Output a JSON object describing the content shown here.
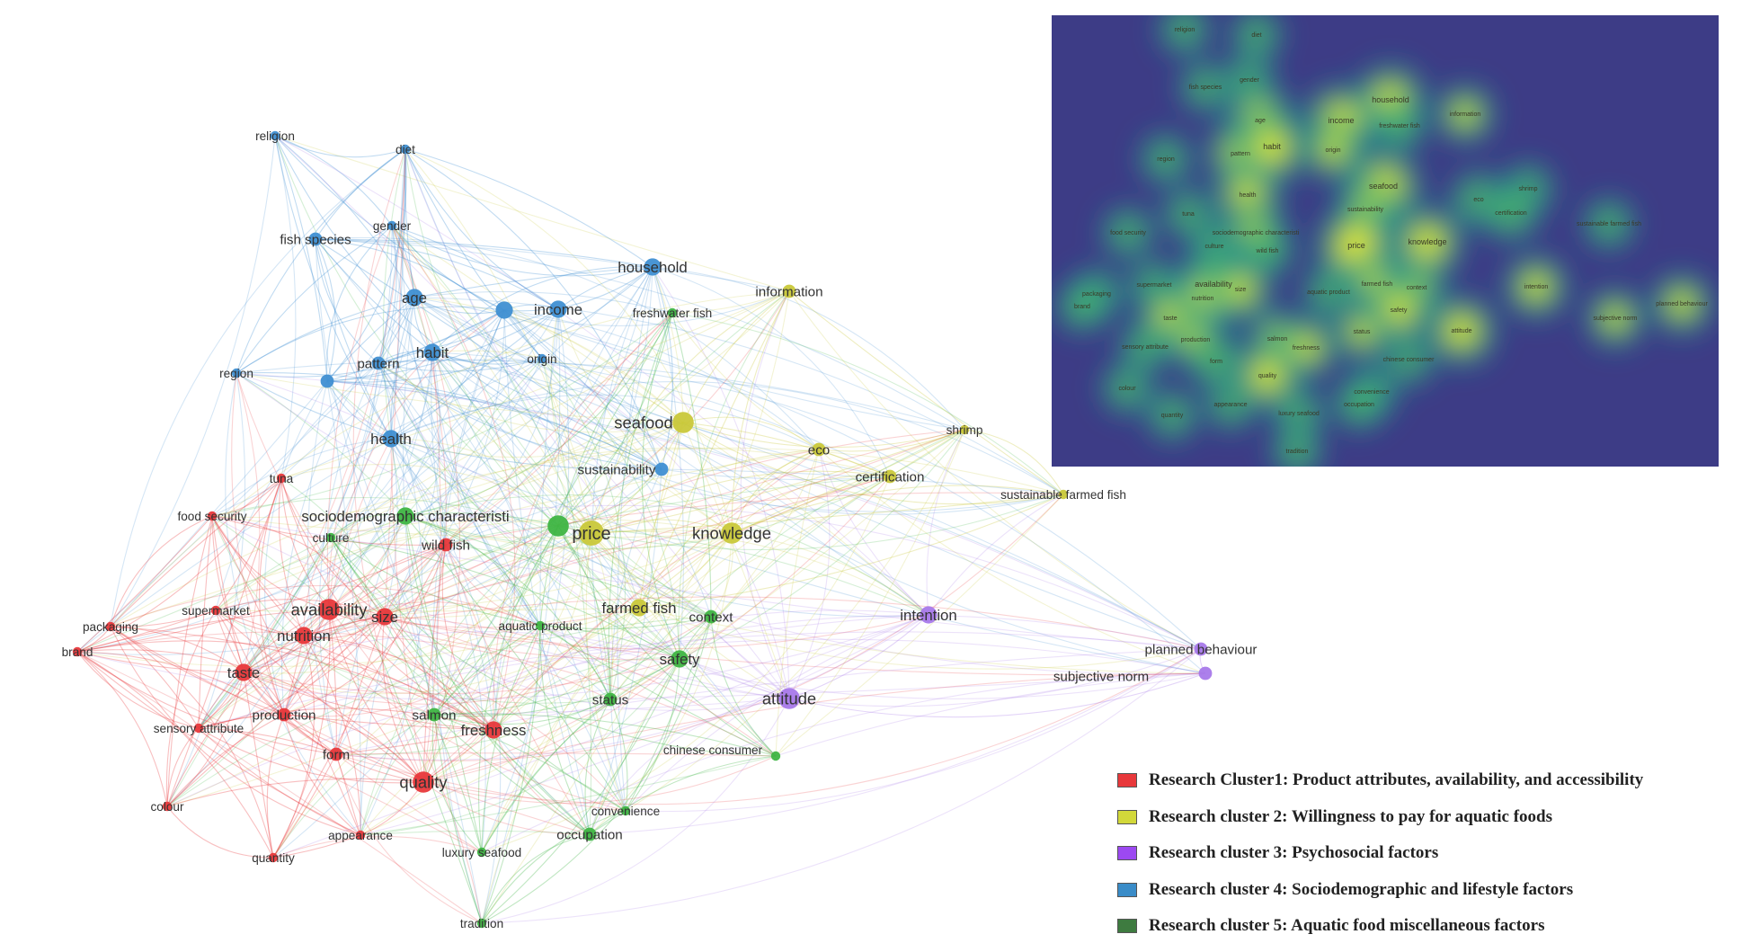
{
  "network": {
    "clusters": {
      "red": {
        "color": "#e8383b"
      },
      "yellow": {
        "color": "#c9c83a"
      },
      "purple": {
        "color": "#a879ea"
      },
      "blue": {
        "color": "#3f8fd2"
      },
      "green": {
        "color": "#3fb543"
      }
    },
    "nodes": [
      {
        "id": "religion",
        "label": "religion",
        "cluster": "blue",
        "weight": 1
      },
      {
        "id": "diet",
        "label": "diet",
        "cluster": "blue",
        "weight": 1
      },
      {
        "id": "gender",
        "label": "gender",
        "cluster": "blue",
        "weight": 1
      },
      {
        "id": "fish species",
        "label": "fish species",
        "cluster": "blue",
        "weight": 2
      },
      {
        "id": "age",
        "label": "age",
        "cluster": "blue",
        "weight": 3
      },
      {
        "id": "household",
        "label": "household",
        "cluster": "blue",
        "weight": 3
      },
      {
        "id": "income",
        "label": "income",
        "cluster": "blue",
        "weight": 3
      },
      {
        "id": "income2",
        "label": "",
        "cluster": "blue",
        "weight": 3
      },
      {
        "id": "region",
        "label": "region",
        "cluster": "blue",
        "weight": 1
      },
      {
        "id": "pattern",
        "label": "pattern",
        "cluster": "blue",
        "weight": 2
      },
      {
        "id": "pattern2",
        "label": "",
        "cluster": "blue",
        "weight": 2
      },
      {
        "id": "habit",
        "label": "habit",
        "cluster": "blue",
        "weight": 3
      },
      {
        "id": "origin",
        "label": "origin",
        "cluster": "blue",
        "weight": 1
      },
      {
        "id": "health",
        "label": "health",
        "cluster": "blue",
        "weight": 3
      },
      {
        "id": "sustainability",
        "label": "sustainability",
        "cluster": "blue",
        "weight": 2
      },
      {
        "id": "freshwater fish",
        "label": "freshwater fish",
        "cluster": "green",
        "weight": 1
      },
      {
        "id": "information",
        "label": "information",
        "cluster": "yellow",
        "weight": 2
      },
      {
        "id": "seafood",
        "label": "seafood",
        "cluster": "yellow",
        "weight": 4
      },
      {
        "id": "eco",
        "label": "eco",
        "cluster": "yellow",
        "weight": 2
      },
      {
        "id": "certification",
        "label": "certification",
        "cluster": "yellow",
        "weight": 2
      },
      {
        "id": "shrimp",
        "label": "shrimp",
        "cluster": "yellow",
        "weight": 1
      },
      {
        "id": "sustainable farmed fish",
        "label": "sustainable farmed fish",
        "cluster": "yellow",
        "weight": 1
      },
      {
        "id": "price",
        "label": "price",
        "cluster": "yellow",
        "weight": 5
      },
      {
        "id": "knowledge",
        "label": "knowledge",
        "cluster": "yellow",
        "weight": 4
      },
      {
        "id": "farmed fish",
        "label": "farmed fish",
        "cluster": "yellow",
        "weight": 3
      },
      {
        "id": "sociodemographic characteristi",
        "label": "sociodemographic characteristi",
        "cluster": "green",
        "weight": 3
      },
      {
        "id": "price2",
        "label": "",
        "cluster": "green",
        "weight": 4
      },
      {
        "id": "tuna",
        "label": "tuna",
        "cluster": "red",
        "weight": 1
      },
      {
        "id": "food security",
        "label": "food security",
        "cluster": "red",
        "weight": 1
      },
      {
        "id": "culture",
        "label": "culture",
        "cluster": "green",
        "weight": 1
      },
      {
        "id": "wild fish",
        "label": "wild fish",
        "cluster": "red",
        "weight": 2
      },
      {
        "id": "supermarket",
        "label": "supermarket",
        "cluster": "red",
        "weight": 1
      },
      {
        "id": "availability",
        "label": "availability",
        "cluster": "red",
        "weight": 4
      },
      {
        "id": "size",
        "label": "size",
        "cluster": "red",
        "weight": 3
      },
      {
        "id": "packaging",
        "label": "packaging",
        "cluster": "red",
        "weight": 1
      },
      {
        "id": "brand",
        "label": "brand",
        "cluster": "red",
        "weight": 1
      },
      {
        "id": "nutrition",
        "label": "nutrition",
        "cluster": "red",
        "weight": 3
      },
      {
        "id": "aquatic product",
        "label": "aquatic product",
        "cluster": "green",
        "weight": 1
      },
      {
        "id": "context",
        "label": "context",
        "cluster": "green",
        "weight": 2
      },
      {
        "id": "intention",
        "label": "intention",
        "cluster": "purple",
        "weight": 3
      },
      {
        "id": "planned behaviour",
        "label": "planned behaviour",
        "cluster": "purple",
        "weight": 2
      },
      {
        "id": "subjective norm",
        "label": "subjective norm",
        "cluster": "purple",
        "weight": 2
      },
      {
        "id": "taste",
        "label": "taste",
        "cluster": "red",
        "weight": 3
      },
      {
        "id": "safety",
        "label": "safety",
        "cluster": "green",
        "weight": 3
      },
      {
        "id": "attitude",
        "label": "attitude",
        "cluster": "purple",
        "weight": 4
      },
      {
        "id": "production",
        "label": "production",
        "cluster": "red",
        "weight": 2
      },
      {
        "id": "salmon",
        "label": "salmon",
        "cluster": "green",
        "weight": 2
      },
      {
        "id": "status",
        "label": "status",
        "cluster": "green",
        "weight": 2
      },
      {
        "id": "sensory attribute",
        "label": "sensory attribute",
        "cluster": "red",
        "weight": 1
      },
      {
        "id": "freshness",
        "label": "freshness",
        "cluster": "red",
        "weight": 3
      },
      {
        "id": "chinese consumer",
        "label": "chinese consumer",
        "cluster": "green",
        "weight": 1
      },
      {
        "id": "form",
        "label": "form",
        "cluster": "red",
        "weight": 2
      },
      {
        "id": "quality",
        "label": "quality",
        "cluster": "red",
        "weight": 4
      },
      {
        "id": "colour",
        "label": "colour",
        "cluster": "red",
        "weight": 1
      },
      {
        "id": "appearance",
        "label": "appearance",
        "cluster": "red",
        "weight": 1
      },
      {
        "id": "convenience",
        "label": "convenience",
        "cluster": "green",
        "weight": 1
      },
      {
        "id": "occupation",
        "label": "occupation",
        "cluster": "green",
        "weight": 2
      },
      {
        "id": "quantity",
        "label": "quantity",
        "cluster": "red",
        "weight": 1
      },
      {
        "id": "luxury seafood",
        "label": "luxury seafood",
        "cluster": "green",
        "weight": 1
      },
      {
        "id": "tradition",
        "label": "tradition",
        "cluster": "green",
        "weight": 1
      }
    ]
  },
  "heatmap": {
    "background": "#3d3c86",
    "labels": [
      "religion",
      "diet",
      "fish species",
      "gender",
      "household",
      "age",
      "income",
      "freshwater fish",
      "information",
      "pattern",
      "habit",
      "origin",
      "region",
      "seafood",
      "health",
      "sustainability",
      "tuna",
      "food security",
      "sociodemographic characteristi",
      "culture",
      "wild fish",
      "price",
      "knowledge",
      "eco",
      "shrimp",
      "certification",
      "sustainable farmed fish",
      "packaging",
      "brand",
      "supermarket",
      "availability",
      "nutrition",
      "size",
      "aquatic product",
      "farmed fish",
      "context",
      "intention",
      "planned behaviour",
      "subjective norm",
      "taste",
      "safety",
      "production",
      "salmon",
      "status",
      "attitude",
      "sensory attribute",
      "freshness",
      "form",
      "chinese consumer",
      "quality",
      "colour",
      "convenience",
      "appearance",
      "quantity",
      "luxury seafood",
      "occupation",
      "tradition"
    ]
  },
  "legend": [
    {
      "color": "#e8383b",
      "label": "Research Cluster1: Product attributes, availability, and accessibility"
    },
    {
      "color": "#d2d83a",
      "label": "Research cluster 2: Willingness to pay for aquatic foods"
    },
    {
      "color": "#9c49f1",
      "label": "Research cluster 3: Psychosocial factors"
    },
    {
      "color": "#3a8cc8",
      "label": "Research cluster 4: Sociodemographic and lifestyle factors"
    },
    {
      "color": "#3e7b40",
      "label": "Research cluster 5: Aquatic food miscellaneous factors"
    }
  ]
}
